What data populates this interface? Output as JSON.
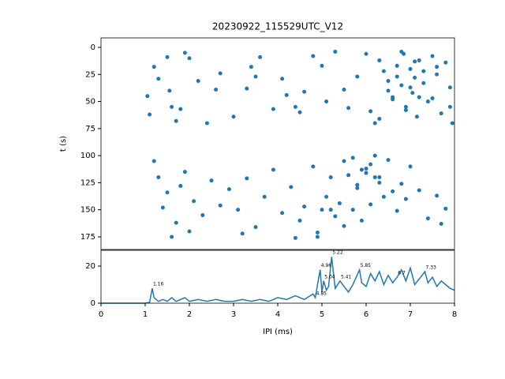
{
  "chart_data": [
    {
      "type": "scatter",
      "title": "20230922_115529UTC_V12",
      "y_label": "t (s)",
      "color": "#1f77b4",
      "xlim": [
        0,
        8
      ],
      "ylim": [
        186.7,
        -8.75
      ],
      "yticks": [
        0,
        25,
        50,
        75,
        100,
        125,
        150,
        175
      ],
      "x": [
        1.05,
        1.1,
        1.2,
        1.3,
        1.5,
        1.55,
        1.6,
        1.7,
        1.8,
        1.9,
        2.0,
        2.2,
        2.4,
        2.6,
        2.7,
        3.0,
        3.3,
        3.4,
        3.5,
        3.6,
        3.9,
        4.1,
        4.2,
        4.4,
        4.5,
        4.6,
        4.8,
        5.0,
        5.1,
        5.3,
        5.5,
        5.6,
        5.8,
        6.0,
        6.2,
        6.3,
        6.4,
        6.5,
        6.6,
        6.7,
        6.8,
        6.85,
        6.9,
        7.0,
        7.05,
        7.1,
        7.15,
        7.2,
        7.3,
        7.4,
        7.5,
        7.6,
        7.7,
        7.8,
        7.9,
        7.95,
        6.5,
        6.6,
        6.7,
        6.9,
        7.0,
        7.1,
        7.2,
        7.3,
        6.1,
        6.3,
        6.8,
        7.5,
        7.6,
        7.9,
        1.2,
        1.3,
        1.4,
        1.5,
        1.7,
        1.8,
        1.9,
        2.1,
        2.3,
        2.5,
        2.7,
        2.9,
        3.1,
        3.3,
        3.5,
        3.7,
        3.9,
        4.1,
        4.3,
        4.5,
        4.6,
        4.8,
        4.9,
        5.0,
        5.1,
        5.2,
        5.3,
        5.4,
        5.5,
        5.6,
        5.7,
        5.8,
        5.9,
        6.0,
        6.1,
        6.2,
        6.3,
        6.4,
        6.5,
        6.6,
        6.7,
        6.8,
        6.9,
        7.0,
        7.2,
        7.4,
        7.6,
        7.8,
        5.7,
        5.9,
        6.1,
        6.3,
        5.8,
        6.0,
        6.2,
        4.9,
        5.2,
        5.5,
        1.6,
        2.0,
        3.2,
        4.4,
        7.7
      ],
      "y": [
        45,
        62,
        18,
        29,
        9,
        40,
        55,
        68,
        57,
        5,
        10,
        31,
        70,
        39,
        24,
        64,
        38,
        18,
        27,
        9,
        57,
        29,
        44,
        55,
        60,
        41,
        8,
        17,
        50,
        4,
        39,
        56,
        27,
        6,
        70,
        12,
        22,
        31,
        48,
        17,
        35,
        6,
        55,
        20,
        42,
        28,
        64,
        12,
        33,
        50,
        8,
        25,
        61,
        14,
        37,
        70,
        40,
        46,
        27,
        58,
        37,
        13,
        46,
        22,
        59,
        66,
        4,
        47,
        18,
        55,
        105,
        120,
        148,
        134,
        162,
        128,
        115,
        142,
        155,
        123,
        146,
        131,
        150,
        121,
        166,
        138,
        113,
        153,
        129,
        160,
        147,
        110,
        175,
        150,
        138,
        120,
        156,
        144,
        105,
        118,
        150,
        127,
        160,
        112,
        145,
        100,
        120,
        138,
        104,
        133,
        151,
        126,
        140,
        110,
        132,
        158,
        137,
        149,
        102,
        113,
        108,
        125,
        130,
        116,
        120,
        171,
        150,
        165,
        175,
        170,
        172,
        176,
        163
      ]
    },
    {
      "type": "line",
      "x_label": "IPI (ms)",
      "color": "#1f77b4",
      "xlim": [
        0,
        8
      ],
      "ylim": [
        0,
        28.5
      ],
      "xticks": [
        0,
        1,
        2,
        3,
        4,
        5,
        6,
        7,
        8
      ],
      "yticks": [
        0,
        20
      ],
      "x": [
        0,
        0.5,
        1.0,
        1.1,
        1.16,
        1.2,
        1.3,
        1.4,
        1.5,
        1.6,
        1.7,
        1.8,
        1.9,
        2.0,
        2.2,
        2.4,
        2.6,
        2.8,
        3.0,
        3.2,
        3.4,
        3.6,
        3.8,
        4.0,
        4.2,
        4.4,
        4.6,
        4.8,
        4.85,
        4.9,
        4.96,
        5.0,
        5.04,
        5.1,
        5.15,
        5.22,
        5.3,
        5.41,
        5.5,
        5.6,
        5.7,
        5.85,
        5.9,
        6.0,
        6.1,
        6.2,
        6.3,
        6.4,
        6.5,
        6.6,
        6.7,
        6.8,
        6.9,
        7.0,
        7.1,
        7.2,
        7.33,
        7.4,
        7.5,
        7.6,
        7.7,
        7.8,
        7.9,
        8.0
      ],
      "values": [
        0,
        0,
        0,
        0.5,
        8,
        3,
        1,
        2,
        1,
        3,
        1,
        2,
        3,
        1,
        2,
        1,
        2,
        1,
        1,
        2,
        1,
        2,
        1,
        3,
        2,
        4,
        2,
        5,
        3,
        10,
        18,
        6,
        12,
        7,
        9,
        25,
        8,
        12,
        9,
        6,
        10,
        18,
        11,
        9,
        16,
        12,
        17,
        10,
        15,
        11,
        14,
        18,
        12,
        19,
        10,
        13,
        17,
        11,
        14,
        9,
        12,
        10,
        8,
        7
      ],
      "peak_x": [
        1.16,
        4.85,
        4.96,
        5.04,
        5.22,
        5.41,
        5.85,
        6.7,
        7.33
      ],
      "peak_y": [
        8,
        3,
        18,
        12,
        25,
        12,
        18,
        14,
        17
      ]
    }
  ]
}
